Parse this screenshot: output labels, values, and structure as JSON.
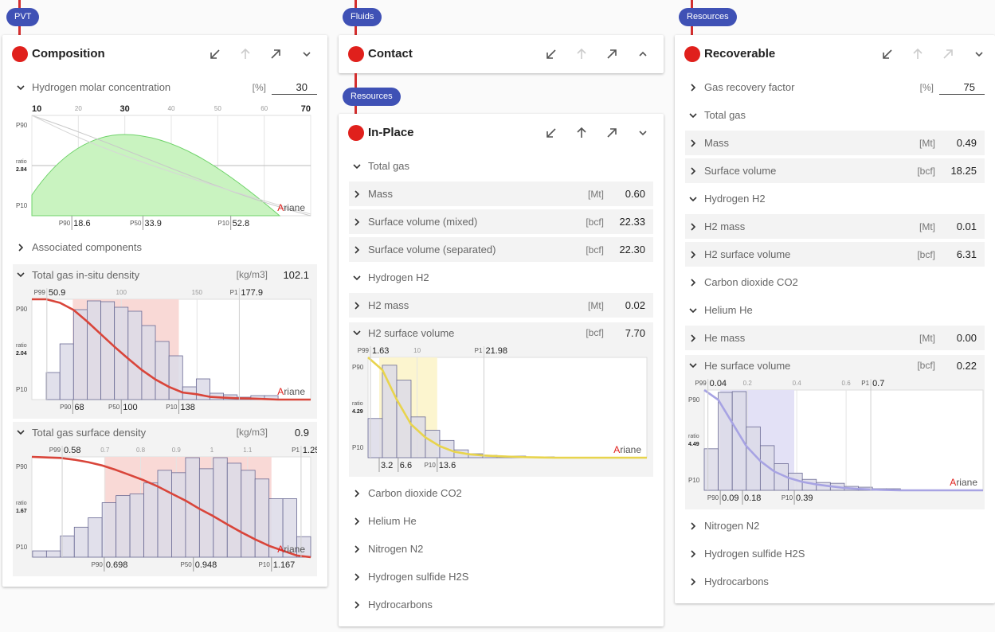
{
  "columns": [
    {
      "blocks": [
        {
          "tag": "PVT"
        },
        {
          "title": "Composition",
          "actions_enabled": [
            true,
            false,
            true
          ],
          "collapsed": false,
          "rows": [
            {
              "label": "Hydrogen molar concentration",
              "unit": "[%]",
              "value": 30,
              "input": true,
              "expanded": true,
              "chart": {
                "type": "slider",
                "xlim": [
                  10,
                  70
                ],
                "xticks": [
                  10,
                  20,
                  30,
                  40,
                  50,
                  60,
                  70
                ],
                "y_labels": [
                  "P90",
                  "P10"
                ],
                "ratio_label": "ratio",
                "ratio": 2.84,
                "brand": "Ariane",
                "bottom": [
                  {
                    "label": "P90",
                    "value": 18.6
                  },
                  {
                    "label": "P50",
                    "value": 33.9
                  },
                  {
                    "label": "P10",
                    "value": 52.8
                  }
                ],
                "color": "#6fd36a",
                "shade": "#c9f3c0"
              }
            },
            {
              "label": "Associated components",
              "expanded": false
            },
            {
              "label": "Total gas in-situ density",
              "unit": "[kg/m3]",
              "value": "102.1",
              "expanded": true,
              "chart": {
                "type": "histogram",
                "xlim": [
                  41,
                  225
                ],
                "ylim": [
                  0,
                  126
                ],
                "bins": [
                  50.5,
                  59.5,
                  68.5,
                  77.5,
                  86.5,
                  95.5,
                  104.5,
                  113.5,
                  122.5,
                  131.5,
                  140.5,
                  149.5,
                  158.5,
                  167.5,
                  176.5,
                  185.5,
                  194.5,
                  203.5
                ],
                "counts": [
                  34,
                  70,
                  113,
                  124,
                  123,
                  116,
                  111,
                  93,
                  73,
                  55,
                  16,
                  26,
                  8,
                  6,
                  3,
                  5,
                  5
                ],
                "xticks": [
                  100,
                  150
                ],
                "top": [
                  {
                    "label": "P99",
                    "value": 50.9
                  },
                  {
                    "label": "P1",
                    "value": 177.9
                  }
                ],
                "bottom": [
                  {
                    "label": "P90",
                    "value": 68
                  },
                  {
                    "label": "P50",
                    "value": 100
                  },
                  {
                    "label": "P10",
                    "value": 138
                  }
                ],
                "y_labels": [
                  "P90",
                  "P10"
                ],
                "ratio_label": "ratio",
                "ratio": 2.04,
                "brand": "Ariane",
                "color": "#d9453a",
                "shade": "#f9d9d6"
              }
            },
            {
              "label": "Total gas surface density",
              "unit": "[kg/m3]",
              "value": "0.9",
              "expanded": true,
              "chart": {
                "type": "histogram",
                "xlim": [
                  0.495,
                  1.277
                ],
                "ylim": [
                  0,
                  127
                ],
                "bins": [
                  0.497,
                  0.536,
                  0.575,
                  0.614,
                  0.653,
                  0.692,
                  0.731,
                  0.77,
                  0.809,
                  0.848,
                  0.887,
                  0.926,
                  0.965,
                  1.004,
                  1.043,
                  1.082,
                  1.121,
                  1.16,
                  1.199,
                  1.238,
                  1.277
                ],
                "counts": [
                  8,
                  8,
                  27,
                  38,
                  50,
                  69,
                  78,
                  80,
                  94,
                  110,
                  107,
                  126,
                  112,
                  126,
                  119,
                  110,
                  99,
                  74,
                  74,
                  26
                ],
                "xticks": [
                  0.7,
                  0.8,
                  0.9,
                  1,
                  1.1
                ],
                "top": [
                  {
                    "label": "P99",
                    "value": 0.58
                  },
                  {
                    "label": "P1",
                    "value": 1.25
                  }
                ],
                "bottom": [
                  {
                    "label": "P90",
                    "value": 0.698
                  },
                  {
                    "label": "P50",
                    "value": 0.948
                  },
                  {
                    "label": "P10",
                    "value": 1.167
                  }
                ],
                "y_labels": [
                  "P90",
                  "P10"
                ],
                "ratio_label": "ratio",
                "ratio": 1.67,
                "brand": "Ariane",
                "color": "#d9453a",
                "shade": "#f9d9d6"
              }
            }
          ]
        }
      ]
    },
    {
      "blocks": [
        {
          "tag": "Fluids"
        },
        {
          "title": "Contact",
          "actions_enabled": [
            true,
            false,
            true
          ],
          "collapsed": true
        },
        {
          "tag": "Resources"
        },
        {
          "title": "In-Place",
          "actions_enabled": [
            true,
            true,
            true
          ],
          "collapsed": false,
          "rows": [
            {
              "label": "Total gas",
              "expanded": true
            },
            {
              "label": "Mass",
              "unit": "[Mt]",
              "value": "0.60",
              "expanded": false
            },
            {
              "label": "Surface volume (mixed)",
              "unit": "[bcf]",
              "value": "22.33",
              "expanded": false
            },
            {
              "label": "Surface volume (separated)",
              "unit": "[bcf]",
              "value": "22.30",
              "expanded": false
            },
            {
              "label": "Hydrogen H2",
              "expanded": true
            },
            {
              "label": "H2 mass",
              "unit": "[Mt]",
              "value": "0.02",
              "expanded": false
            },
            {
              "label": "H2 surface volume",
              "unit": "[bcf]",
              "value": "7.70",
              "expanded": true,
              "chart": {
                "type": "histogram",
                "xlim": [
                  1.2,
                  51.2
                ],
                "ylim": [
                  0,
                  128
                ],
                "bins": [
                  1.2,
                  3.77,
                  6.34,
                  8.91,
                  11.48,
                  14.05,
                  16.62,
                  19.19,
                  21.76,
                  24.33,
                  26.9,
                  29.47,
                  32.04,
                  34.61
                ],
                "counts": [
                  50,
                  118,
                  99,
                  52,
                  35,
                  22,
                  10,
                  5,
                  3,
                  2,
                  2,
                  1,
                  1
                ],
                "xticks": [
                  10
                ],
                "top": [
                  {
                    "label": "P99",
                    "value": 1.63
                  },
                  {
                    "label": "P1",
                    "value": 21.98
                  }
                ],
                "bottom": [
                  {
                    "value": 3.2
                  },
                  {
                    "value": 6.6
                  },
                  {
                    "label": "P10",
                    "value": 13.6
                  }
                ],
                "y_labels": [
                  "P90",
                  "P10"
                ],
                "ratio_label": "ratio",
                "ratio": 4.29,
                "brand": "Ariane",
                "color": "#e8d44d",
                "shade": "#fcf5cf"
              }
            },
            {
              "label": "Carbon dioxide CO2",
              "expanded": false
            },
            {
              "label": "Helium He",
              "expanded": false
            },
            {
              "label": "Nitrogen N2",
              "expanded": false
            },
            {
              "label": "Hydrogen sulfide H2S",
              "expanded": false
            },
            {
              "label": "Hydrocarbons",
              "expanded": false
            }
          ]
        }
      ]
    },
    {
      "blocks": [
        {
          "tag": "Resources"
        },
        {
          "title": "Recoverable",
          "actions_enabled": [
            true,
            false,
            false
          ],
          "collapsed": false,
          "rows": [
            {
              "label": "Gas recovery factor",
              "unit": "[%]",
              "value": 75,
              "input": true,
              "expanded": false
            },
            {
              "label": "Total gas",
              "expanded": true
            },
            {
              "label": "Mass",
              "unit": "[Mt]",
              "value": "0.49",
              "expanded": false
            },
            {
              "label": "Surface volume",
              "unit": "[bcf]",
              "value": "18.25",
              "expanded": false
            },
            {
              "label": "Hydrogen H2",
              "expanded": true
            },
            {
              "label": "H2 mass",
              "unit": "[Mt]",
              "value": "0.01",
              "expanded": false
            },
            {
              "label": "H2 surface volume",
              "unit": "[bcf]",
              "value": "6.31",
              "expanded": false
            },
            {
              "label": "Carbon dioxide CO2",
              "expanded": false
            },
            {
              "label": "Helium He",
              "expanded": true
            },
            {
              "label": "He mass",
              "unit": "[Mt]",
              "value": "0.00",
              "expanded": false
            },
            {
              "label": "He surface volume",
              "unit": "[bcf]",
              "value": "0.22",
              "expanded": true,
              "chart": {
                "type": "histogram",
                "xlim": [
                  0.025,
                  1.155
                ],
                "ylim": [
                  0,
                  128
                ],
                "bins": [
                  0.025,
                  0.0818,
                  0.1386,
                  0.1954,
                  0.2522,
                  0.309,
                  0.3658,
                  0.4226,
                  0.4794,
                  0.5362,
                  0.593,
                  0.6498,
                  0.7066,
                  0.7634,
                  0.8202
                ],
                "counts": [
                  53,
                  125,
                  126,
                  81,
                  57,
                  34,
                  22,
                  14,
                  10,
                  9,
                  5,
                  4,
                  2,
                  2
                ],
                "xticks": [
                  0.2,
                  0.4,
                  0.6
                ],
                "top": [
                  {
                    "label": "P99",
                    "value": 0.04
                  },
                  {
                    "label": "P1",
                    "value": 0.7
                  }
                ],
                "bottom": [
                  {
                    "label": "P90",
                    "value": 0.09
                  },
                  {
                    "value": 0.18
                  },
                  {
                    "label": "P10",
                    "value": 0.39
                  }
                ],
                "y_labels": [
                  "P90",
                  "P10"
                ],
                "ratio_label": "ratio",
                "ratio": 4.49,
                "brand": "Ariane",
                "color": "#a7a3e3",
                "shade": "#e3e1f6"
              }
            },
            {
              "label": "Nitrogen N2",
              "expanded": false
            },
            {
              "label": "Hydrogen sulfide H2S",
              "expanded": false
            },
            {
              "label": "Hydrocarbons",
              "expanded": false
            }
          ]
        }
      ]
    }
  ]
}
